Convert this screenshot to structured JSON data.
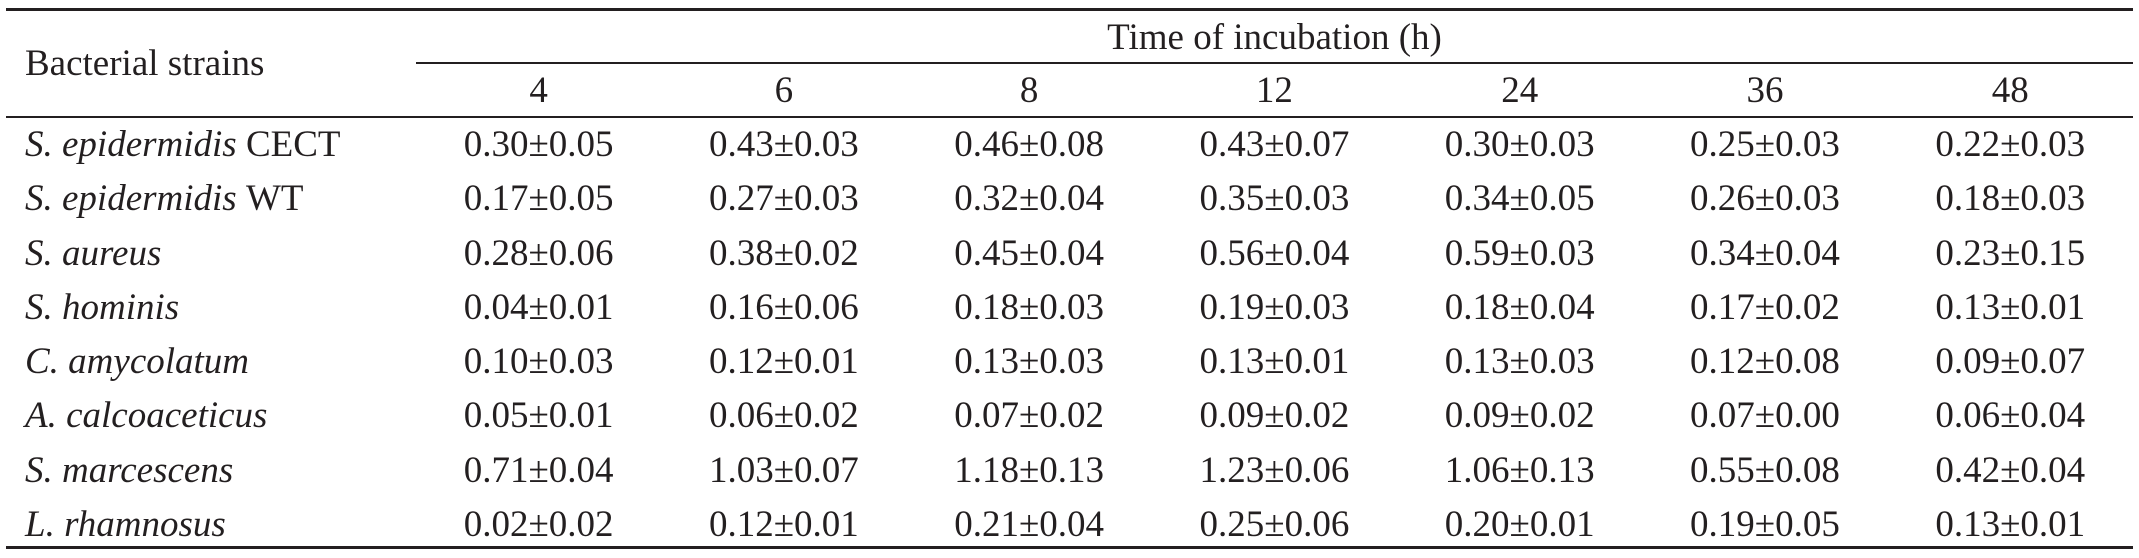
{
  "table": {
    "header": {
      "strain_label": "Bacterial strains",
      "time_group_label": "Time of incubation (h)",
      "time_points": [
        "4",
        "6",
        "8",
        "12",
        "24",
        "36",
        "48"
      ]
    },
    "rows": [
      {
        "strain": "S. epidermidis",
        "suffix": "CECT",
        "values": [
          "0.30±0.05",
          "0.43±0.03",
          "0.46±0.08",
          "0.43±0.07",
          "0.30±0.03",
          "0.25±0.03",
          "0.22±0.03"
        ]
      },
      {
        "strain": "S. epidermidis",
        "suffix": "WT",
        "values": [
          "0.17±0.05",
          "0.27±0.03",
          "0.32±0.04",
          "0.35±0.03",
          "0.34±0.05",
          "0.26±0.03",
          "0.18±0.03"
        ]
      },
      {
        "strain": "S. aureus",
        "values": [
          "0.28±0.06",
          "0.38±0.02",
          "0.45±0.04",
          "0.56±0.04",
          "0.59±0.03",
          "0.34±0.04",
          "0.23±0.15"
        ]
      },
      {
        "strain": "S. hominis",
        "values": [
          "0.04±0.01",
          "0.16±0.06",
          "0.18±0.03",
          "0.19±0.03",
          "0.18±0.04",
          "0.17±0.02",
          "0.13±0.01"
        ]
      },
      {
        "strain": "C. amycolatum",
        "values": [
          "0.10±0.03",
          "0.12±0.01",
          "0.13±0.03",
          "0.13±0.01",
          "0.13±0.03",
          "0.12±0.08",
          "0.09±0.07"
        ]
      },
      {
        "strain": "A. calcoaceticus",
        "values": [
          "0.05±0.01",
          "0.06±0.02",
          "0.07±0.02",
          "0.09±0.02",
          "0.09±0.02",
          "0.07±0.00",
          "0.06±0.04"
        ]
      },
      {
        "strain": "S. marcescens",
        "values": [
          "0.71±0.04",
          "1.03±0.07",
          "1.18±0.13",
          "1.23±0.06",
          "1.06±0.13",
          "0.55±0.08",
          "0.42±0.04"
        ]
      },
      {
        "strain": "L. rhamnosus",
        "values": [
          "0.02±0.02",
          "0.12±0.01",
          "0.21±0.04",
          "0.25±0.06",
          "0.20±0.01",
          "0.19±0.05",
          "0.13±0.01"
        ]
      }
    ]
  }
}
